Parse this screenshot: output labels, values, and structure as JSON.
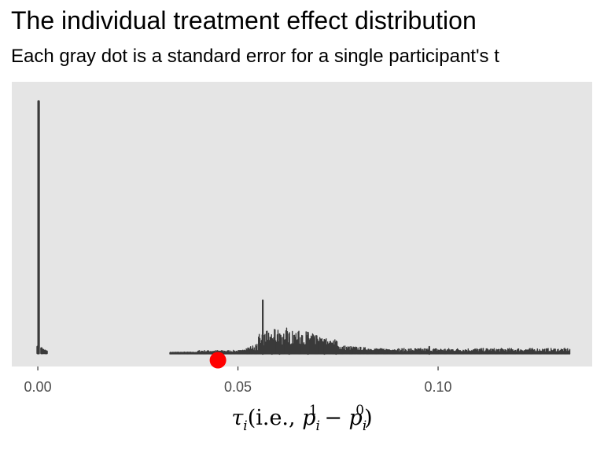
{
  "chart_data": {
    "type": "scatter",
    "title": "The individual treatment effect distribution",
    "subtitle": "Each gray dot is a standard error for a single participant's t",
    "xlabel": "τ̂ᵢ (i.e., p̂ᵢ¹ − p̂ᵢ⁰)",
    "ylabel": "",
    "xlim": [
      -0.0065,
      0.1385
    ],
    "x_ticks": [
      0.0,
      0.05,
      0.1
    ],
    "x_tick_labels": [
      "0.00",
      "0.05",
      "0.10"
    ],
    "grid": false,
    "panel_background": "#e5e5e5",
    "series": [
      {
        "color": "#3a3a3a",
        "marker": "dot-stack",
        "clusters": [
          {
            "x_min": 0.0,
            "x_max": 0.002,
            "peak_x": 0.0002,
            "peak_height": 1.0
          },
          {
            "x_min": 0.033,
            "x_max": 0.133,
            "peak_x": 0.0562,
            "peak_height": 0.21
          }
        ]
      },
      {
        "color": "#ff0000",
        "marker": "large-dot",
        "points": [
          {
            "x": 0.045
          }
        ]
      }
    ]
  },
  "xlabel_parts": {
    "tau": "τ",
    "hat": "^",
    "i": "i",
    "open": "(i.e., ",
    "p": "p",
    "one": "1",
    "minus": " − ",
    "zero": "0",
    "close": ")"
  }
}
